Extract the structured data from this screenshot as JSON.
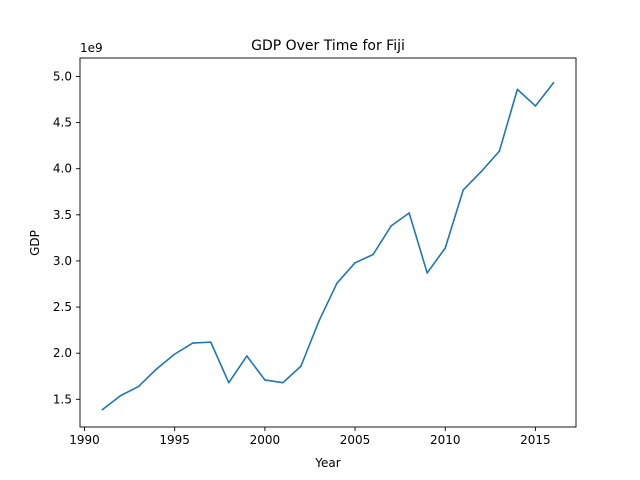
{
  "chart_data": {
    "type": "line",
    "title": "GDP Over Time for Fiji",
    "xlabel": "Year",
    "ylabel": "GDP",
    "y_offset_label": "1e9",
    "xlim": [
      1989.75,
      2017.25
    ],
    "ylim": [
      1.2,
      5.2
    ],
    "x_ticks": [
      1990,
      1995,
      2000,
      2005,
      2010,
      2015
    ],
    "x_tick_labels": [
      "1990",
      "1995",
      "2000",
      "2005",
      "2010",
      "2015"
    ],
    "y_ticks": [
      1.5,
      2.0,
      2.5,
      3.0,
      3.5,
      4.0,
      4.5,
      5.0
    ],
    "y_tick_labels": [
      "1.5",
      "2.0",
      "2.5",
      "3.0",
      "3.5",
      "4.0",
      "4.5",
      "5.0"
    ],
    "grid": false,
    "line_color": "#1f77b4",
    "series": [
      {
        "x": [
          1991,
          1992,
          1993,
          1994,
          1995,
          1996,
          1997,
          1998,
          1999,
          2000,
          2001,
          2002,
          2003,
          2004,
          2005,
          2006,
          2007,
          2008,
          2009,
          2010,
          2011,
          2012,
          2013,
          2014,
          2015,
          2016
        ],
        "values": [
          1.39,
          1.54,
          1.64,
          1.83,
          1.99,
          2.11,
          2.12,
          1.68,
          1.97,
          1.71,
          1.68,
          1.86,
          2.35,
          2.76,
          2.98,
          3.07,
          3.38,
          3.52,
          2.87,
          3.14,
          3.77,
          3.97,
          4.19,
          4.86,
          4.68,
          4.93
        ]
      }
    ]
  }
}
